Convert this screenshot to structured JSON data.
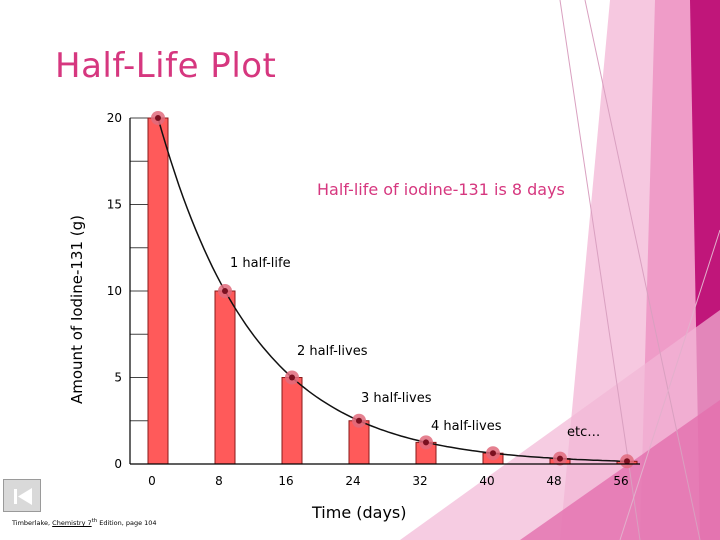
{
  "title": "Half-Life Plot",
  "headline": "Half-life of iodine-131 is 8 days",
  "annotations": {
    "one": "1 half-life",
    "two": "2 half-lives",
    "three": "3 half-lives",
    "four": "4 half-lives",
    "etc": "etc…"
  },
  "credit": {
    "prefix": "Timberlake, ",
    "book": "Chemistry 7",
    "sup": "th",
    "suffix": " Edition, page 104"
  },
  "colors": {
    "title": "#d6377f",
    "bar_fill": "#ff5a5a",
    "bar_stroke": "#8a1a1a",
    "marker": "#e06b7d",
    "accent_magenta": "#c0167a"
  },
  "nav_icon": "first-slide-icon",
  "chart_data": {
    "type": "bar",
    "xlabel": "Time (days)",
    "ylabel": "Amount of Iodine-131 (g)",
    "categories": [
      "0",
      "8",
      "16",
      "24",
      "32",
      "40",
      "48",
      "56"
    ],
    "values": [
      20,
      10,
      5,
      2.5,
      1.25,
      0.625,
      0.3125,
      0.156
    ],
    "ylim": [
      0,
      20
    ],
    "yticks": [
      "0",
      "5",
      "10",
      "15",
      "20"
    ],
    "grid": "horizontal lines at y ticks, drawn only near the y axis",
    "overlay": "smooth decay curve through bar tops"
  }
}
